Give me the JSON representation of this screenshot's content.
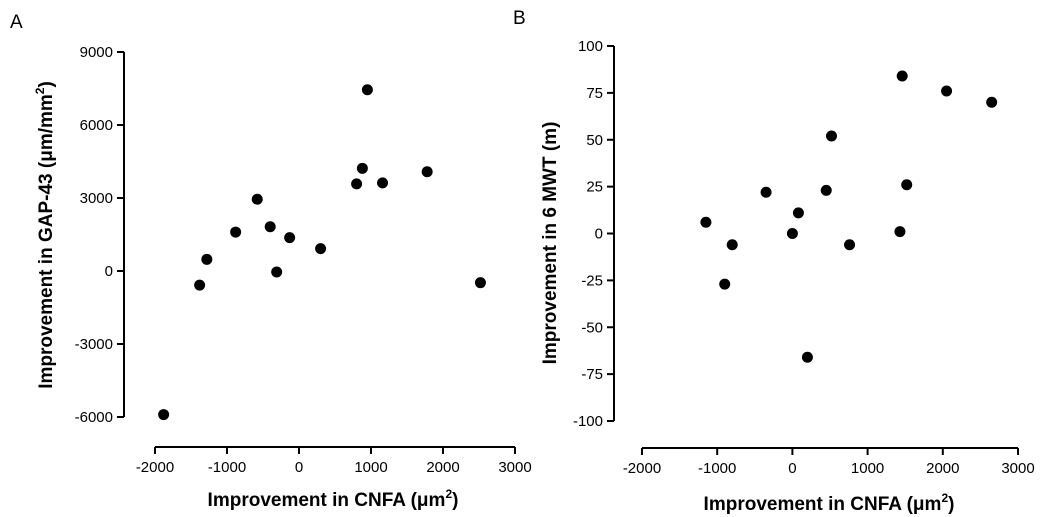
{
  "chart_data": [
    {
      "type": "scatter",
      "panel_label": "A",
      "title": "",
      "xlabel": "Improvement in CNFA (μm",
      "xlabel_sup": "2",
      "xlabel_tail": ")",
      "ylabel": "Improvement in GAP-43 (μm/mm",
      "ylabel_sup": "2",
      "ylabel_tail": ")",
      "xlim": [
        -2000,
        3000
      ],
      "ylim": [
        -6000,
        9000
      ],
      "x_ticks": [
        -2000,
        -1000,
        0,
        1000,
        2000,
        3000
      ],
      "y_ticks": [
        -6000,
        -3000,
        0,
        3000,
        6000,
        9000
      ],
      "x_tick_labels": [
        "-2000",
        "-1000",
        "0",
        "1000",
        "2000",
        "3000"
      ],
      "y_tick_labels": [
        "-6000",
        "-3000",
        "0",
        "3000",
        "6000",
        "9000"
      ],
      "grid": false,
      "marker_color": "#000000",
      "points": [
        {
          "x": -1880,
          "y": -5900
        },
        {
          "x": -1380,
          "y": -580
        },
        {
          "x": -1280,
          "y": 480
        },
        {
          "x": -880,
          "y": 1600
        },
        {
          "x": -580,
          "y": 2950
        },
        {
          "x": -400,
          "y": 1820
        },
        {
          "x": -310,
          "y": -40
        },
        {
          "x": -130,
          "y": 1370
        },
        {
          "x": 300,
          "y": 920
        },
        {
          "x": 800,
          "y": 3580
        },
        {
          "x": 880,
          "y": 4220
        },
        {
          "x": 950,
          "y": 7450
        },
        {
          "x": 1160,
          "y": 3620
        },
        {
          "x": 1780,
          "y": 4080
        },
        {
          "x": 2520,
          "y": -480
        }
      ]
    },
    {
      "type": "scatter",
      "panel_label": "B",
      "title": "",
      "xlabel": "Improvement in CNFA (μm",
      "xlabel_sup": "2",
      "xlabel_tail": ")",
      "ylabel": "Improvement in 6 MWT (m)",
      "ylabel_sup": "",
      "ylabel_tail": "",
      "xlim": [
        -2000,
        3000
      ],
      "ylim": [
        -100,
        100
      ],
      "x_ticks": [
        -2000,
        -1000,
        0,
        1000,
        2000,
        3000
      ],
      "y_ticks": [
        -100,
        -75,
        -50,
        -25,
        0,
        25,
        50,
        75,
        100
      ],
      "x_tick_labels": [
        "-2000",
        "-1000",
        "0",
        "1000",
        "2000",
        "3000"
      ],
      "y_tick_labels": [
        "-100",
        "-75",
        "-50",
        "-25",
        "0",
        "25",
        "50",
        "75",
        "100"
      ],
      "grid": false,
      "marker_color": "#000000",
      "points": [
        {
          "x": -1150,
          "y": 6
        },
        {
          "x": -900,
          "y": -27
        },
        {
          "x": -800,
          "y": -6
        },
        {
          "x": -350,
          "y": 22
        },
        {
          "x": 0,
          "y": 0
        },
        {
          "x": 80,
          "y": 11
        },
        {
          "x": 200,
          "y": -66
        },
        {
          "x": 450,
          "y": 23
        },
        {
          "x": 520,
          "y": 52
        },
        {
          "x": 760,
          "y": -6
        },
        {
          "x": 1430,
          "y": 1
        },
        {
          "x": 1460,
          "y": 84
        },
        {
          "x": 1520,
          "y": 26
        },
        {
          "x": 2050,
          "y": 76
        },
        {
          "x": 2650,
          "y": 70
        }
      ]
    }
  ]
}
